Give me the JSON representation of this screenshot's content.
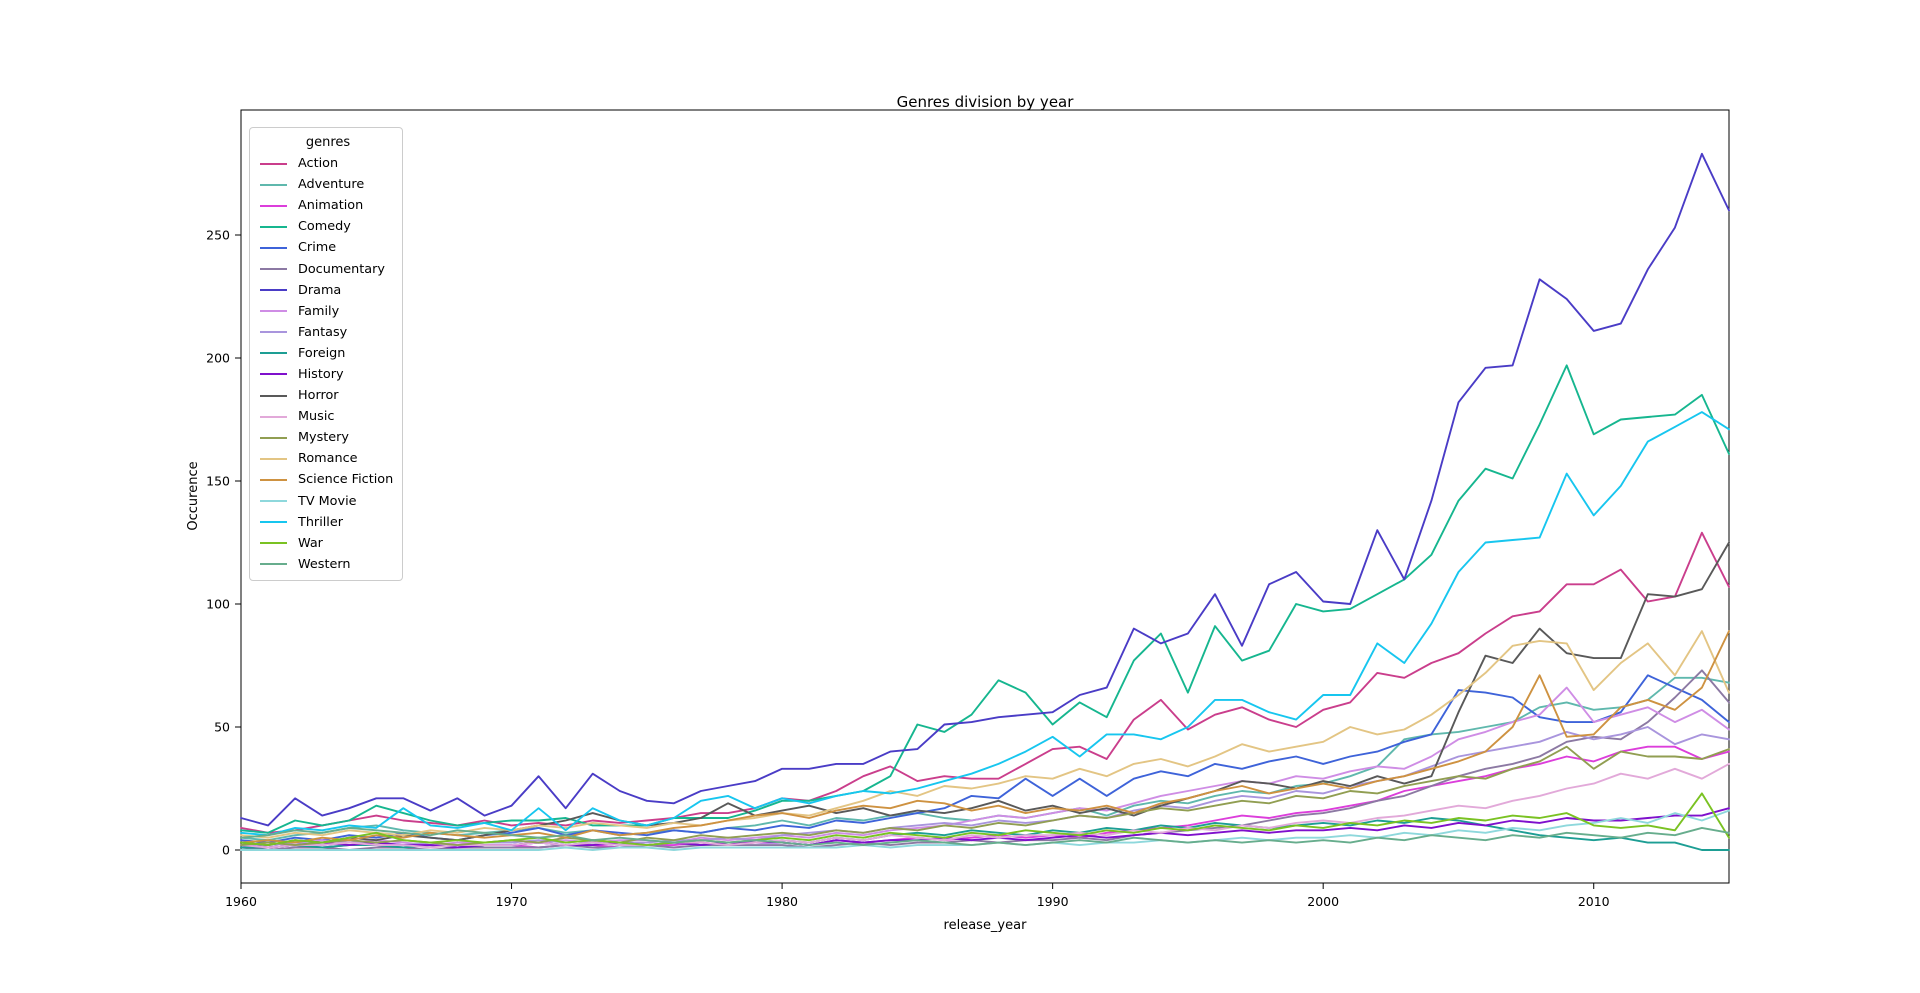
{
  "chart_data": {
    "type": "line",
    "title": "Genres division by year",
    "xlabel": "release_year",
    "ylabel": "Occurence",
    "legend_title": "genres",
    "legend_position": "upper left",
    "grid": false,
    "xlim": [
      1960,
      2015
    ],
    "ylim": [
      -13,
      301
    ],
    "x_ticks": [
      1960,
      1970,
      1980,
      1990,
      2000,
      2010
    ],
    "y_ticks": [
      0,
      50,
      100,
      150,
      200,
      250
    ],
    "x": [
      1960,
      1961,
      1962,
      1963,
      1964,
      1965,
      1966,
      1967,
      1968,
      1969,
      1970,
      1971,
      1972,
      1973,
      1974,
      1975,
      1976,
      1977,
      1978,
      1979,
      1980,
      1981,
      1982,
      1983,
      1984,
      1985,
      1986,
      1987,
      1988,
      1989,
      1990,
      1991,
      1992,
      1993,
      1994,
      1995,
      1996,
      1997,
      1998,
      1999,
      2000,
      2001,
      2002,
      2003,
      2004,
      2005,
      2006,
      2007,
      2008,
      2009,
      2010,
      2011,
      2012,
      2013,
      2014,
      2015
    ],
    "series": [
      {
        "name": "Action",
        "color": "#ca3e8c",
        "values": [
          9,
          7,
          8,
          10,
          12,
          14,
          12,
          11,
          10,
          12,
          10,
          11,
          10,
          12,
          11,
          12,
          13,
          15,
          15,
          17,
          21,
          20,
          24,
          30,
          34,
          28,
          30,
          29,
          29,
          35,
          41,
          42,
          37,
          53,
          61,
          49,
          55,
          58,
          53,
          50,
          57,
          60,
          72,
          70,
          76,
          80,
          88,
          95,
          97,
          108,
          108,
          114,
          101,
          103,
          129,
          107
        ]
      },
      {
        "name": "Adventure",
        "color": "#5fb8ad",
        "values": [
          5,
          4,
          6,
          7,
          9,
          10,
          8,
          7,
          6,
          7,
          8,
          9,
          7,
          8,
          6,
          7,
          8,
          7,
          9,
          10,
          12,
          10,
          13,
          12,
          14,
          15,
          13,
          12,
          14,
          13,
          15,
          17,
          14,
          18,
          20,
          19,
          22,
          24,
          23,
          26,
          27,
          30,
          34,
          45,
          47,
          48,
          50,
          52,
          58,
          60,
          57,
          58,
          61,
          70,
          70,
          68
        ]
      },
      {
        "name": "Animation",
        "color": "#dc3edb",
        "values": [
          2,
          1,
          2,
          1,
          2,
          2,
          1,
          2,
          1,
          2,
          2,
          1,
          2,
          2,
          1,
          2,
          2,
          3,
          2,
          3,
          3,
          2,
          4,
          3,
          4,
          5,
          4,
          5,
          6,
          5,
          6,
          5,
          7,
          8,
          9,
          10,
          12,
          14,
          13,
          15,
          16,
          18,
          20,
          24,
          26,
          28,
          30,
          33,
          35,
          38,
          36,
          40,
          42,
          42,
          37,
          40
        ]
      },
      {
        "name": "Comedy",
        "color": "#16b68f",
        "values": [
          8,
          7,
          12,
          10,
          12,
          18,
          15,
          12,
          10,
          11,
          12,
          12,
          13,
          10,
          10,
          10,
          13,
          13,
          13,
          16,
          20,
          20,
          22,
          24,
          30,
          51,
          48,
          55,
          69,
          64,
          51,
          60,
          54,
          77,
          88,
          64,
          91,
          77,
          81,
          100,
          97,
          98,
          104,
          110,
          120,
          142,
          155,
          151,
          173,
          197,
          169,
          175,
          176,
          177,
          185,
          161
        ]
      },
      {
        "name": "Crime",
        "color": "#3e63d9",
        "values": [
          4,
          3,
          5,
          4,
          6,
          5,
          7,
          5,
          4,
          6,
          7,
          9,
          6,
          8,
          7,
          6,
          8,
          7,
          9,
          8,
          10,
          9,
          12,
          11,
          13,
          15,
          17,
          22,
          21,
          29,
          22,
          29,
          22,
          29,
          32,
          30,
          35,
          33,
          36,
          38,
          35,
          38,
          40,
          44,
          47,
          65,
          64,
          62,
          54,
          52,
          52,
          56,
          71,
          66,
          61,
          52
        ]
      },
      {
        "name": "Documentary",
        "color": "#8c79a3",
        "values": [
          1,
          0,
          1,
          1,
          0,
          1,
          1,
          0,
          1,
          1,
          1,
          1,
          2,
          1,
          1,
          2,
          1,
          2,
          2,
          2,
          2,
          1,
          2,
          3,
          2,
          3,
          3,
          4,
          3,
          4,
          4,
          5,
          4,
          6,
          7,
          8,
          9,
          10,
          12,
          14,
          15,
          17,
          20,
          22,
          26,
          30,
          33,
          35,
          38,
          44,
          46,
          45,
          52,
          62,
          73,
          60
        ]
      },
      {
        "name": "Drama",
        "color": "#4a3cc6",
        "values": [
          13,
          10,
          21,
          14,
          17,
          21,
          21,
          16,
          21,
          14,
          18,
          30,
          17,
          31,
          24,
          20,
          19,
          24,
          26,
          28,
          33,
          33,
          35,
          35,
          40,
          41,
          51,
          52,
          54,
          55,
          56,
          63,
          66,
          90,
          84,
          88,
          104,
          83,
          108,
          113,
          101,
          100,
          130,
          110,
          142,
          182,
          196,
          197,
          232,
          224,
          211,
          214,
          236,
          253,
          283,
          260
        ]
      },
      {
        "name": "Family",
        "color": "#cf8de5",
        "values": [
          3,
          2,
          3,
          4,
          3,
          4,
          3,
          2,
          3,
          3,
          4,
          3,
          4,
          3,
          4,
          4,
          3,
          5,
          4,
          5,
          6,
          5,
          7,
          6,
          8,
          9,
          10,
          12,
          14,
          13,
          15,
          17,
          16,
          19,
          22,
          24,
          26,
          28,
          27,
          30,
          29,
          32,
          34,
          33,
          38,
          45,
          48,
          52,
          55,
          66,
          52,
          55,
          58,
          52,
          57,
          49
        ]
      },
      {
        "name": "Fantasy",
        "color": "#a995dd",
        "values": [
          2,
          2,
          3,
          2,
          3,
          3,
          2,
          3,
          2,
          3,
          3,
          4,
          3,
          4,
          3,
          3,
          4,
          4,
          5,
          4,
          6,
          7,
          8,
          7,
          9,
          10,
          11,
          10,
          12,
          11,
          12,
          14,
          13,
          16,
          18,
          17,
          20,
          22,
          21,
          24,
          23,
          26,
          28,
          30,
          34,
          38,
          40,
          42,
          44,
          48,
          45,
          47,
          50,
          43,
          47,
          45
        ]
      },
      {
        "name": "Foreign",
        "color": "#1d9e94",
        "values": [
          1,
          1,
          2,
          1,
          2,
          2,
          1,
          2,
          1,
          2,
          2,
          3,
          2,
          3,
          2,
          2,
          3,
          2,
          3,
          3,
          4,
          3,
          5,
          4,
          6,
          7,
          6,
          8,
          7,
          6,
          8,
          7,
          9,
          8,
          10,
          9,
          11,
          10,
          9,
          10,
          11,
          10,
          12,
          11,
          13,
          12,
          10,
          8,
          6,
          5,
          4,
          5,
          3,
          3,
          0,
          0
        ]
      },
      {
        "name": "History",
        "color": "#7f10cc",
        "values": [
          2,
          1,
          2,
          3,
          2,
          3,
          2,
          2,
          1,
          2,
          2,
          3,
          2,
          2,
          3,
          2,
          3,
          2,
          3,
          3,
          3,
          2,
          4,
          3,
          4,
          4,
          5,
          4,
          5,
          4,
          5,
          6,
          5,
          6,
          7,
          6,
          7,
          8,
          7,
          8,
          8,
          9,
          8,
          10,
          9,
          11,
          10,
          12,
          11,
          13,
          12,
          12,
          13,
          14,
          14,
          17
        ]
      },
      {
        "name": "Horror",
        "color": "#595959",
        "values": [
          3,
          2,
          4,
          3,
          5,
          4,
          6,
          5,
          4,
          6,
          8,
          10,
          12,
          15,
          12,
          10,
          11,
          13,
          19,
          14,
          16,
          18,
          15,
          17,
          14,
          16,
          15,
          17,
          20,
          16,
          18,
          15,
          17,
          14,
          18,
          21,
          24,
          28,
          27,
          25,
          28,
          26,
          30,
          27,
          30,
          56,
          79,
          76,
          90,
          80,
          78,
          78,
          104,
          103,
          106,
          125
        ]
      },
      {
        "name": "Music",
        "color": "#e2a9d9",
        "values": [
          2,
          1,
          2,
          2,
          3,
          2,
          2,
          1,
          2,
          2,
          2,
          3,
          2,
          3,
          2,
          2,
          3,
          3,
          2,
          3,
          4,
          3,
          5,
          4,
          6,
          5,
          4,
          6,
          5,
          6,
          6,
          7,
          6,
          8,
          7,
          9,
          8,
          10,
          9,
          11,
          12,
          11,
          13,
          14,
          16,
          18,
          17,
          20,
          22,
          25,
          27,
          31,
          29,
          33,
          29,
          35
        ]
      },
      {
        "name": "Mystery",
        "color": "#919e52",
        "values": [
          2,
          3,
          2,
          3,
          4,
          3,
          4,
          3,
          2,
          3,
          4,
          3,
          5,
          4,
          3,
          5,
          4,
          6,
          5,
          6,
          7,
          6,
          8,
          7,
          9,
          8,
          10,
          9,
          11,
          10,
          12,
          14,
          13,
          15,
          17,
          16,
          18,
          20,
          19,
          22,
          21,
          24,
          23,
          26,
          28,
          30,
          29,
          33,
          36,
          42,
          33,
          40,
          38,
          38,
          37,
          41
        ]
      },
      {
        "name": "Romance",
        "color": "#e3c584",
        "values": [
          6,
          5,
          7,
          6,
          8,
          7,
          6,
          8,
          7,
          9,
          8,
          10,
          9,
          11,
          10,
          9,
          11,
          10,
          12,
          13,
          15,
          14,
          17,
          20,
          24,
          22,
          26,
          25,
          27,
          30,
          29,
          33,
          30,
          35,
          37,
          34,
          38,
          43,
          40,
          42,
          44,
          50,
          47,
          49,
          55,
          63,
          72,
          83,
          85,
          84,
          65,
          76,
          84,
          71,
          89,
          64
        ]
      },
      {
        "name": "Science Fiction",
        "color": "#ce9241",
        "values": [
          3,
          4,
          3,
          5,
          4,
          6,
          5,
          7,
          6,
          5,
          6,
          7,
          5,
          8,
          6,
          7,
          9,
          10,
          12,
          14,
          15,
          13,
          16,
          18,
          17,
          20,
          19,
          16,
          18,
          15,
          17,
          16,
          18,
          15,
          19,
          21,
          24,
          26,
          23,
          25,
          27,
          25,
          28,
          30,
          33,
          36,
          40,
          50,
          71,
          46,
          47,
          58,
          61,
          57,
          66,
          89
        ]
      },
      {
        "name": "TV Movie",
        "color": "#8ed8dc",
        "values": [
          0,
          0,
          0,
          0,
          0,
          0,
          0,
          0,
          0,
          0,
          0,
          0,
          1,
          0,
          1,
          1,
          0,
          1,
          1,
          1,
          1,
          1,
          1,
          2,
          1,
          2,
          2,
          2,
          3,
          2,
          3,
          2,
          3,
          3,
          4,
          3,
          4,
          5,
          4,
          5,
          5,
          6,
          5,
          7,
          6,
          8,
          7,
          9,
          8,
          10,
          11,
          13,
          11,
          15,
          12,
          16
        ]
      },
      {
        "name": "Thriller",
        "color": "#17c6ef",
        "values": [
          7,
          6,
          9,
          8,
          10,
          9,
          17,
          10,
          9,
          11,
          8,
          17,
          8,
          17,
          12,
          10,
          13,
          20,
          22,
          17,
          21,
          19,
          22,
          24,
          23,
          25,
          28,
          31,
          35,
          40,
          46,
          38,
          47,
          47,
          45,
          50,
          61,
          61,
          56,
          53,
          63,
          63,
          84,
          76,
          92,
          113,
          125,
          126,
          127,
          153,
          136,
          148,
          166,
          172,
          178,
          171
        ]
      },
      {
        "name": "War",
        "color": "#7ac222",
        "values": [
          3,
          2,
          4,
          3,
          5,
          7,
          4,
          3,
          4,
          3,
          4,
          5,
          3,
          4,
          3,
          2,
          3,
          4,
          3,
          4,
          5,
          4,
          6,
          5,
          7,
          6,
          5,
          7,
          6,
          8,
          7,
          6,
          8,
          7,
          9,
          8,
          10,
          9,
          8,
          10,
          9,
          11,
          10,
          12,
          11,
          13,
          12,
          14,
          13,
          15,
          10,
          9,
          10,
          8,
          23,
          5
        ]
      },
      {
        "name": "Western",
        "color": "#67ad8d",
        "values": [
          5,
          6,
          8,
          7,
          9,
          8,
          7,
          6,
          8,
          7,
          6,
          5,
          6,
          4,
          5,
          4,
          3,
          4,
          3,
          4,
          3,
          2,
          3,
          2,
          3,
          4,
          3,
          2,
          3,
          2,
          3,
          4,
          3,
          5,
          4,
          3,
          4,
          3,
          4,
          3,
          4,
          3,
          5,
          4,
          6,
          5,
          4,
          6,
          5,
          7,
          6,
          5,
          7,
          6,
          9,
          7
        ]
      }
    ]
  }
}
